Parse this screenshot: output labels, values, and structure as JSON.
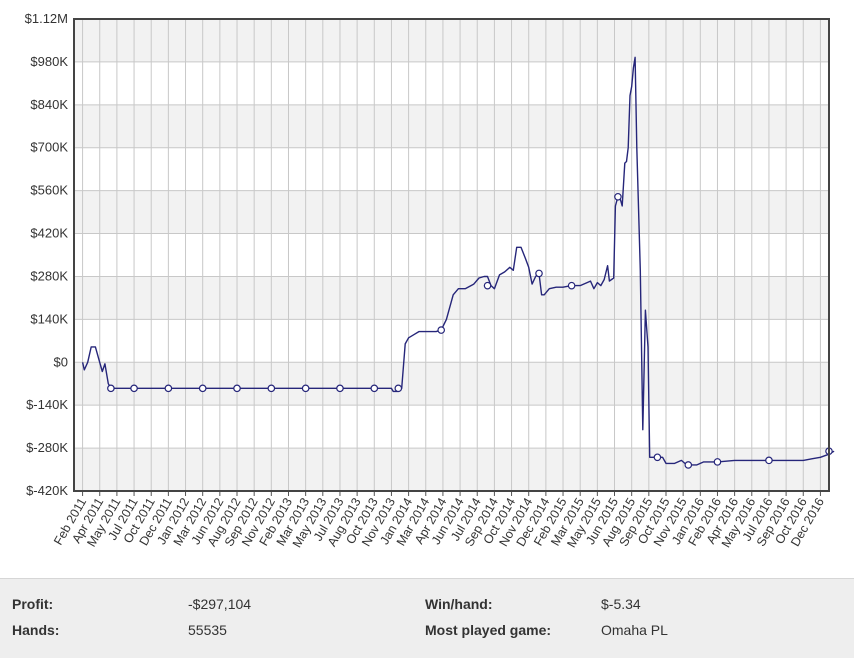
{
  "chart_data": {
    "type": "line",
    "title": "",
    "xlabel": "",
    "ylabel": "",
    "y_tick_labels": [
      "$1.12M",
      "$980K",
      "$840K",
      "$700K",
      "$560K",
      "$420K",
      "$280K",
      "$140K",
      "$0",
      "$-140K",
      "$-280K",
      "$-420K"
    ],
    "y_tick_values": [
      1120000,
      980000,
      840000,
      700000,
      560000,
      420000,
      280000,
      140000,
      0,
      -140000,
      -280000,
      -420000
    ],
    "ylim": [
      -420000,
      1120000
    ],
    "x_tick_labels": [
      "Feb 2011",
      "Apr 2011",
      "May 2011",
      "Jul 2011",
      "Oct 2011",
      "Dec 2011",
      "Jan 2012",
      "Mar 2012",
      "Jun 2012",
      "Aug 2012",
      "Sep 2012",
      "Nov 2012",
      "Feb 2013",
      "Mar 2013",
      "May 2013",
      "Jul 2013",
      "Aug 2013",
      "Oct 2013",
      "Nov 2013",
      "Jan 2014",
      "Mar 2014",
      "Apr 2014",
      "Jun 2014",
      "Jul 2014",
      "Sep 2014",
      "Oct 2014",
      "Nov 2014",
      "Dec 2014",
      "Feb 2015",
      "Mar 2015",
      "May 2015",
      "Jun 2015",
      "Aug 2015",
      "Sep 2015",
      "Oct 2015",
      "Nov 2015",
      "Jan 2016",
      "Feb 2016",
      "Apr 2016",
      "May 2016",
      "Jul 2016",
      "Sep 2016",
      "Oct 2016",
      "Dec 2016"
    ],
    "grid": true,
    "line_color": "#26267a",
    "series": [
      {
        "points": [
          [
            0,
            0
          ],
          [
            0.1,
            -25000
          ],
          [
            0.3,
            0
          ],
          [
            0.5,
            50000
          ],
          [
            0.75,
            50000
          ],
          [
            1.0,
            0
          ],
          [
            1.15,
            -30000
          ],
          [
            1.3,
            -5000
          ],
          [
            1.5,
            -70000
          ],
          [
            1.65,
            -85000
          ],
          [
            2,
            -85000
          ],
          [
            3,
            -85000
          ],
          [
            5,
            -85000
          ],
          [
            7,
            -85000
          ],
          [
            9,
            -85000
          ],
          [
            11,
            -85000
          ],
          [
            13,
            -85000
          ],
          [
            15,
            -85000
          ],
          [
            17,
            -85000
          ],
          [
            18,
            -85000
          ],
          [
            18.1,
            -95000
          ],
          [
            18.4,
            -95000
          ],
          [
            18.6,
            -85000
          ],
          [
            18.8,
            60000
          ],
          [
            19.0,
            80000
          ],
          [
            19.3,
            90000
          ],
          [
            19.6,
            100000
          ],
          [
            20,
            100000
          ],
          [
            20.6,
            100000
          ],
          [
            20.9,
            105000
          ],
          [
            21.2,
            140000
          ],
          [
            21.6,
            220000
          ],
          [
            21.9,
            240000
          ],
          [
            22.3,
            240000
          ],
          [
            22.8,
            255000
          ],
          [
            23.1,
            275000
          ],
          [
            23.4,
            280000
          ],
          [
            23.6,
            280000
          ],
          [
            23.8,
            250000
          ],
          [
            24.0,
            240000
          ],
          [
            24.3,
            285000
          ],
          [
            24.6,
            295000
          ],
          [
            24.9,
            310000
          ],
          [
            25.1,
            300000
          ],
          [
            25.3,
            375000
          ],
          [
            25.55,
            375000
          ],
          [
            25.8,
            340000
          ],
          [
            26.0,
            310000
          ],
          [
            26.2,
            255000
          ],
          [
            26.4,
            280000
          ],
          [
            26.6,
            290000
          ],
          [
            26.75,
            220000
          ],
          [
            26.9,
            220000
          ],
          [
            27.2,
            240000
          ],
          [
            27.6,
            245000
          ],
          [
            28.0,
            245000
          ],
          [
            28.5,
            250000
          ],
          [
            29.0,
            250000
          ],
          [
            29.4,
            260000
          ],
          [
            29.6,
            265000
          ],
          [
            29.8,
            240000
          ],
          [
            30.0,
            260000
          ],
          [
            30.2,
            250000
          ],
          [
            30.4,
            270000
          ],
          [
            30.6,
            315000
          ],
          [
            30.7,
            265000
          ],
          [
            30.95,
            275000
          ],
          [
            31.05,
            510000
          ],
          [
            31.2,
            540000
          ],
          [
            31.35,
            530000
          ],
          [
            31.45,
            510000
          ],
          [
            31.6,
            650000
          ],
          [
            31.7,
            655000
          ],
          [
            31.8,
            700000
          ],
          [
            31.9,
            870000
          ],
          [
            32.0,
            900000
          ],
          [
            32.1,
            960000
          ],
          [
            32.2,
            995000
          ],
          [
            32.3,
            700000
          ],
          [
            32.5,
            300000
          ],
          [
            32.65,
            -220000
          ],
          [
            32.8,
            170000
          ],
          [
            32.95,
            50000
          ],
          [
            33.05,
            -310000
          ],
          [
            33.5,
            -310000
          ],
          [
            33.8,
            -310000
          ],
          [
            34,
            -330000
          ],
          [
            34.5,
            -330000
          ],
          [
            34.9,
            -320000
          ],
          [
            35.1,
            -330000
          ],
          [
            35.3,
            -335000
          ],
          [
            35.8,
            -335000
          ],
          [
            36.2,
            -325000
          ],
          [
            37,
            -325000
          ],
          [
            38,
            -320000
          ],
          [
            39,
            -320000
          ],
          [
            40,
            -320000
          ],
          [
            41,
            -320000
          ],
          [
            42,
            -320000
          ],
          [
            42.5,
            -315000
          ],
          [
            43,
            -310000
          ],
          [
            43.5,
            -300000
          ],
          [
            43.8,
            -290000
          ]
        ]
      }
    ],
    "markers": [
      [
        1.65,
        -85000
      ],
      [
        3,
        -85000
      ],
      [
        5,
        -85000
      ],
      [
        7,
        -85000
      ],
      [
        9,
        -85000
      ],
      [
        11,
        -85000
      ],
      [
        13,
        -85000
      ],
      [
        15,
        -85000
      ],
      [
        17,
        -85000
      ],
      [
        18.4,
        -85000
      ],
      [
        20.9,
        105000
      ],
      [
        23.6,
        250000
      ],
      [
        26.6,
        290000
      ],
      [
        28.5,
        250000
      ],
      [
        31.2,
        540000
      ],
      [
        33.5,
        -310000
      ],
      [
        35.3,
        -335000
      ],
      [
        37,
        -325000
      ],
      [
        40,
        -320000
      ],
      [
        43.5,
        -290000
      ]
    ]
  },
  "stats": {
    "profit_label": "Profit:",
    "profit_value": "-$297,104",
    "hands_label": "Hands:",
    "hands_value": "55535",
    "winhand_label": "Win/hand:",
    "winhand_value": "$-5.34",
    "game_label": "Most played game:",
    "game_value": "Omaha PL"
  }
}
